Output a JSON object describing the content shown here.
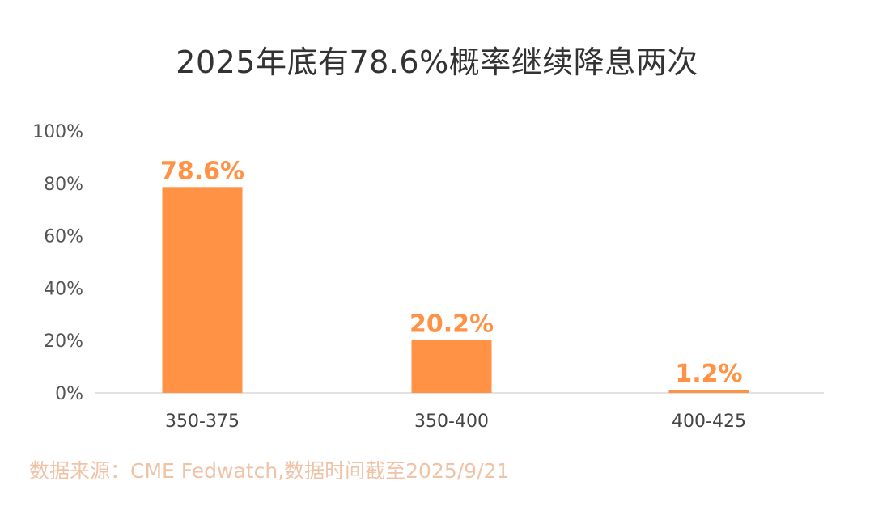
{
  "chart_data": {
    "type": "bar",
    "title": "2025年底有78.6%概率继续降息两次",
    "categories": [
      "350-375",
      "350-400",
      "400-425"
    ],
    "values": [
      78.6,
      20.2,
      1.2
    ],
    "data_labels": [
      "78.6%",
      "20.2%",
      "1.2%"
    ],
    "yticks": [
      "0%",
      "20%",
      "40%",
      "60%",
      "80%",
      "100%"
    ],
    "ylim": [
      0,
      100
    ],
    "xlabel": "",
    "ylabel": "",
    "grid": false,
    "legend": "none",
    "bar_color": "#ff9245",
    "label_color": "#ff9245",
    "source": "数据来源：CME Fedwatch,数据时间截至2025/9/21"
  }
}
